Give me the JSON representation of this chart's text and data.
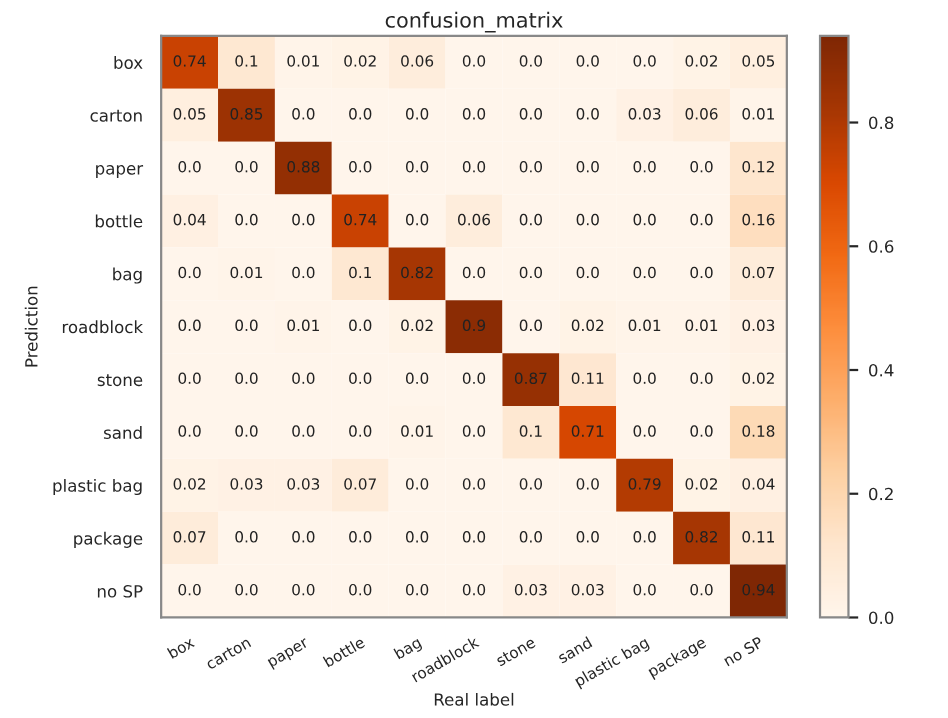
{
  "chart_data": {
    "type": "heatmap",
    "title": "confusion_matrix",
    "xlabel": "Real label",
    "ylabel": "Prediction",
    "categories": [
      "box",
      "carton",
      "paper",
      "bottle",
      "bag",
      "roadblock",
      "stone",
      "sand",
      "plastic bag",
      "package",
      "no SP"
    ],
    "y_categories": [
      "box",
      "carton",
      "paper",
      "bottle",
      "bag",
      "roadblock",
      "stone",
      "sand",
      "plastic bag",
      "package",
      "no SP"
    ],
    "cells": [
      [
        0.74,
        0.1,
        0.01,
        0.02,
        0.06,
        0.0,
        0.0,
        0.0,
        0.0,
        0.02,
        0.05
      ],
      [
        0.05,
        0.85,
        0.0,
        0.0,
        0.0,
        0.0,
        0.0,
        0.0,
        0.03,
        0.06,
        0.01
      ],
      [
        0.0,
        0.0,
        0.88,
        0.0,
        0.0,
        0.0,
        0.0,
        0.0,
        0.0,
        0.0,
        0.12
      ],
      [
        0.04,
        0.0,
        0.0,
        0.74,
        0.0,
        0.06,
        0.0,
        0.0,
        0.0,
        0.0,
        0.16
      ],
      [
        0.0,
        0.01,
        0.0,
        0.1,
        0.82,
        0.0,
        0.0,
        0.0,
        0.0,
        0.0,
        0.07
      ],
      [
        0.0,
        0.0,
        0.01,
        0.0,
        0.02,
        0.9,
        0.0,
        0.02,
        0.01,
        0.01,
        0.03
      ],
      [
        0.0,
        0.0,
        0.0,
        0.0,
        0.0,
        0.0,
        0.87,
        0.11,
        0.0,
        0.0,
        0.02
      ],
      [
        0.0,
        0.0,
        0.0,
        0.0,
        0.01,
        0.0,
        0.1,
        0.71,
        0.0,
        0.0,
        0.18
      ],
      [
        0.02,
        0.03,
        0.03,
        0.07,
        0.0,
        0.0,
        0.0,
        0.0,
        0.79,
        0.02,
        0.04
      ],
      [
        0.07,
        0.0,
        0.0,
        0.0,
        0.0,
        0.0,
        0.0,
        0.0,
        0.0,
        0.82,
        0.11
      ],
      [
        0.0,
        0.0,
        0.0,
        0.0,
        0.0,
        0.0,
        0.03,
        0.03,
        0.0,
        0.0,
        0.94
      ]
    ],
    "clim": [
      0.0,
      0.94
    ],
    "cticks": [
      {
        "value": 0.0,
        "label": "0.0"
      },
      {
        "value": 0.2,
        "label": "0.2"
      },
      {
        "value": 0.4,
        "label": "0.4"
      },
      {
        "value": 0.6,
        "label": "0.6"
      },
      {
        "value": 0.8,
        "label": "0.8"
      }
    ],
    "cell_labels": [
      [
        "0.74",
        "0.1",
        "0.01",
        "0.02",
        "0.06",
        "0.0",
        "0.0",
        "0.0",
        "0.0",
        "0.02",
        "0.05"
      ],
      [
        "0.05",
        "0.85",
        "0.0",
        "0.0",
        "0.0",
        "0.0",
        "0.0",
        "0.0",
        "0.03",
        "0.06",
        "0.01"
      ],
      [
        "0.0",
        "0.0",
        "0.88",
        "0.0",
        "0.0",
        "0.0",
        "0.0",
        "0.0",
        "0.0",
        "0.0",
        "0.12"
      ],
      [
        "0.04",
        "0.0",
        "0.0",
        "0.74",
        "0.0",
        "0.06",
        "0.0",
        "0.0",
        "0.0",
        "0.0",
        "0.16"
      ],
      [
        "0.0",
        "0.01",
        "0.0",
        "0.1",
        "0.82",
        "0.0",
        "0.0",
        "0.0",
        "0.0",
        "0.0",
        "0.07"
      ],
      [
        "0.0",
        "0.0",
        "0.01",
        "0.0",
        "0.02",
        "0.9",
        "0.0",
        "0.02",
        "0.01",
        "0.01",
        "0.03"
      ],
      [
        "0.0",
        "0.0",
        "0.0",
        "0.0",
        "0.0",
        "0.0",
        "0.87",
        "0.11",
        "0.0",
        "0.0",
        "0.02"
      ],
      [
        "0.0",
        "0.0",
        "0.0",
        "0.0",
        "0.01",
        "0.0",
        "0.1",
        "0.71",
        "0.0",
        "0.0",
        "0.18"
      ],
      [
        "0.02",
        "0.03",
        "0.03",
        "0.07",
        "0.0",
        "0.0",
        "0.0",
        "0.0",
        "0.79",
        "0.02",
        "0.04"
      ],
      [
        "0.07",
        "0.0",
        "0.0",
        "0.0",
        "0.0",
        "0.0",
        "0.0",
        "0.0",
        "0.0",
        "0.82",
        "0.11"
      ],
      [
        "0.0",
        "0.0",
        "0.0",
        "0.0",
        "0.0",
        "0.0",
        "0.03",
        "0.03",
        "0.0",
        "0.0",
        "0.94"
      ]
    ]
  }
}
